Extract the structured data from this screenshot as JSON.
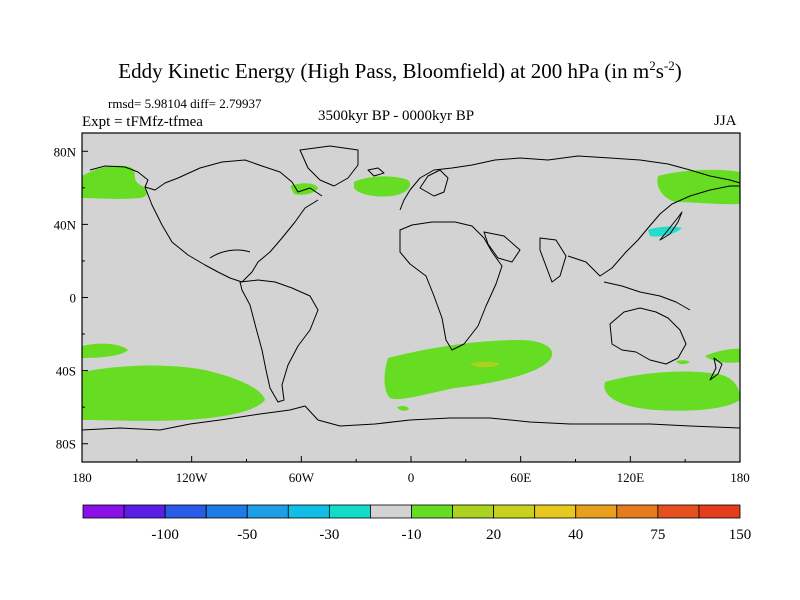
{
  "title": {
    "main": "Eddy Kinetic Energy (High Pass, Bloomfield) at 200 hPa (in m",
    "sup1": "2",
    "mid": "s",
    "sup2": "-2",
    "close": ")"
  },
  "stats_line": "rmsd= 5.98104 diff= 2.79937",
  "experiment_line": "Expt = tFMfz-tfmea",
  "period_line": "3500kyr BP - 0000kyr BP",
  "season": "JJA",
  "map": {
    "x_ticks": [
      "180",
      "120W",
      "60W",
      "0",
      "60E",
      "120E",
      "180"
    ],
    "y_ticks": [
      "80N",
      "40N",
      "0",
      "40S",
      "80S"
    ],
    "background_color": "#d3d3d3",
    "positive_color": "#66dd22",
    "strong_positive_color": "#aad21e",
    "negative_color": "#22ddcc"
  },
  "colorbar": {
    "colors": [
      "#8a12e6",
      "#5a1ee6",
      "#2a5ae8",
      "#1e7ae6",
      "#1e9ee6",
      "#10bee6",
      "#10dcc8",
      "#d3d3d3",
      "#66dd22",
      "#aad21e",
      "#c8d21e",
      "#e6c81e",
      "#e6a01e",
      "#e67a1e",
      "#e6501e",
      "#e63c1e"
    ],
    "labels": [
      "-100",
      "-50",
      "-30",
      "-10",
      "20",
      "40",
      "75",
      "150"
    ]
  }
}
